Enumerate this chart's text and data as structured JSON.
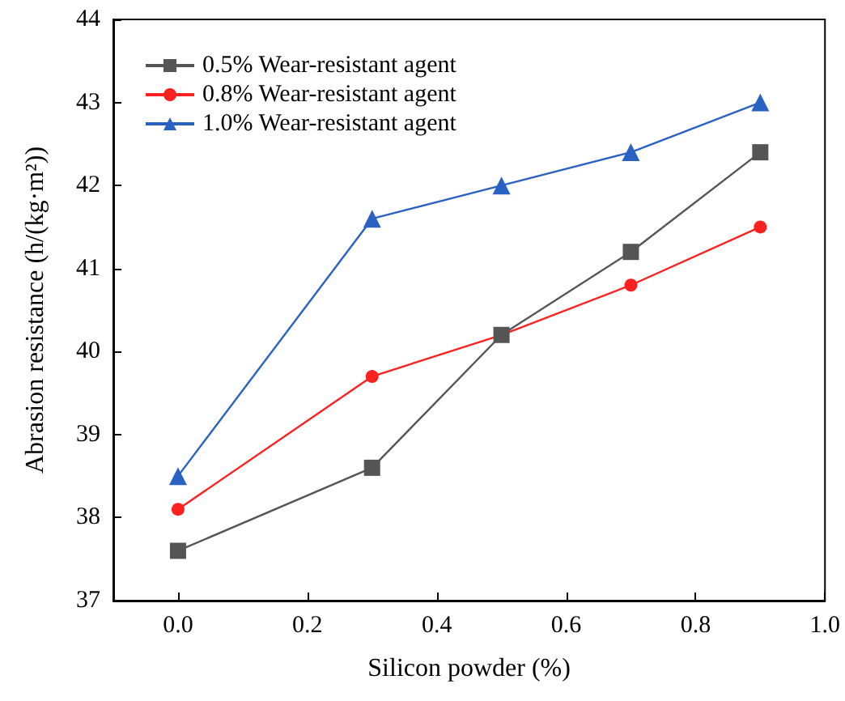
{
  "chart_data": {
    "type": "line",
    "xlabel": "Silicon powder (%)",
    "ylabel": "Abrasion resistance (h/(kg·m²))",
    "xlim": [
      -0.1,
      1.0
    ],
    "xticks": [
      {
        "value": 0,
        "label": "0.0"
      },
      {
        "value": 0.2,
        "label": "0.2"
      },
      {
        "value": 0.4,
        "label": "0.4"
      },
      {
        "value": 0.6,
        "label": "0.6"
      },
      {
        "value": 0.8,
        "label": "0.8"
      },
      {
        "value": 1.0,
        "label": "1.0"
      }
    ],
    "ylim": [
      37,
      44
    ],
    "yticks": [
      37,
      38,
      39,
      40,
      41,
      42,
      43,
      44
    ],
    "x": [
      0,
      0.3,
      0.5,
      0.7,
      0.9
    ],
    "series": [
      {
        "name": "0.5% Wear-resistant agent",
        "color": "#555555",
        "marker": "square",
        "values": [
          37.6,
          38.6,
          40.2,
          41.2,
          42.4
        ]
      },
      {
        "name": "0.8% Wear-resistant agent",
        "color": "#ff2020",
        "marker": "circle",
        "values": [
          38.1,
          39.7,
          40.2,
          40.8,
          41.5
        ]
      },
      {
        "name": "1.0% Wear-resistant agent",
        "color": "#2a62c4",
        "marker": "triangle",
        "values": [
          38.5,
          41.6,
          42.0,
          42.4,
          43.0
        ]
      }
    ],
    "legend": "top left",
    "grid": false,
    "line_style": "solid"
  }
}
